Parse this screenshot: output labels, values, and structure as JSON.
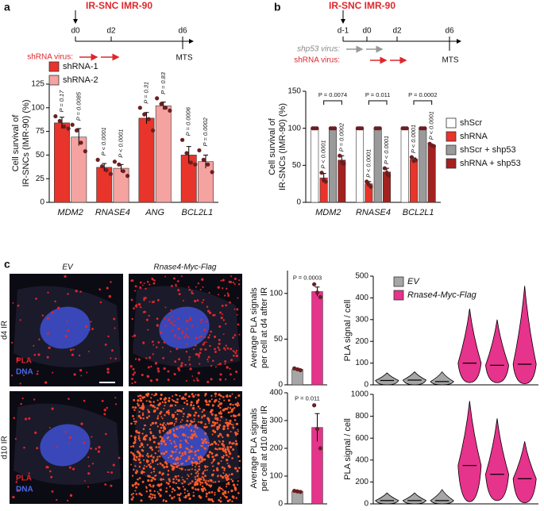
{
  "panels": {
    "a": {
      "label": "a",
      "title": "IR-SNC IMR-90",
      "days": [
        "d0",
        "d2",
        "d6"
      ],
      "virus": "shRNA virus:",
      "readout": "MTS"
    },
    "b": {
      "label": "b",
      "title": "IR-SNC IMR-90",
      "days": [
        "d-1",
        "d0",
        "d2",
        "d6"
      ],
      "virus": [
        "shp53 virus:",
        "shRNA virus:"
      ],
      "readout": "MTS"
    },
    "c": {
      "label": "c",
      "columns": [
        "EV",
        "Rnase4-Myc-Flag"
      ],
      "rows": [
        "d4 IR",
        "d10 IR"
      ],
      "stains": [
        "PLA",
        "DNA"
      ]
    }
  },
  "chart_data": [
    {
      "type": "bar",
      "categories": [
        "MDM2",
        "RNASE4",
        "ANG",
        "BCL2L1"
      ],
      "ylabel": [
        "Cell survival of",
        "IR-SNCs (IMR-90) (%)"
      ],
      "ylim": [
        0,
        125
      ],
      "yticks": [
        0,
        25,
        50,
        75,
        100,
        125
      ],
      "legend": "top-left",
      "series": [
        {
          "name": "shRNA-1",
          "color": "#e8342a",
          "values": [
            84,
            37,
            89,
            50
          ],
          "errors": [
            6,
            4,
            6,
            9
          ],
          "points": [
            [
              91,
              86,
              80,
              78
            ],
            [
              45,
              38,
              34,
              30
            ],
            [
              100,
              93,
              88,
              76
            ],
            [
              66,
              52,
              42,
              40
            ]
          ],
          "p_labels": [
            "P = 0.17",
            "P < 0.0001",
            "P = 0.31",
            "P = 0.0006"
          ]
        },
        {
          "name": "shRNA-2",
          "color": "#f4a3a0",
          "values": [
            69,
            36,
            102,
            43
          ],
          "errors": [
            9,
            4,
            4,
            7
          ],
          "points": [
            [
              82,
              76,
              63,
              54
            ],
            [
              43,
              40,
              33,
              28
            ],
            [
              110,
              104,
              100,
              97
            ],
            [
              55,
              45,
              40,
              32
            ]
          ],
          "p_labels": [
            "P = 0.0085",
            "P < 0.0001",
            "P = 0.83",
            "P = 0.0002"
          ]
        }
      ]
    },
    {
      "type": "bar",
      "categories": [
        "MDM2",
        "RNASE4",
        "BCL2L1"
      ],
      "ylabel": [
        "Cell survival of",
        "IR-SNCs (IMR-90) (%)"
      ],
      "ylim": [
        0,
        150
      ],
      "yticks": [
        0,
        50,
        100,
        150
      ],
      "legend": "right",
      "bracket_labels": [
        "P = 0.0074",
        "P = 0.011",
        "P = 0.0002"
      ],
      "series": [
        {
          "name": "shScr",
          "color": "#ffffff",
          "values": [
            100,
            100,
            100
          ],
          "points": [
            [
              100,
              100,
              100
            ],
            [
              100,
              100,
              100
            ],
            [
              100,
              100,
              100
            ]
          ]
        },
        {
          "name": "shRNA",
          "color": "#e8342a",
          "values": [
            33,
            25,
            58
          ],
          "errors": [
            6,
            3,
            2
          ],
          "points": [
            [
              40,
              30,
              28
            ],
            [
              28,
              24,
              21
            ],
            [
              61,
              56,
              57
            ]
          ],
          "p_labels": [
            "P < 0.0001",
            "P < 0.0001",
            "P < 0.0001"
          ]
        },
        {
          "name": "shScr + shp53",
          "color": "#9a9a9a",
          "values": [
            100,
            100,
            100
          ],
          "points": [
            [
              100,
              100,
              100
            ],
            [
              100,
              100,
              100
            ],
            [
              100,
              100,
              100
            ]
          ]
        },
        {
          "name": "shRNA + shp53",
          "color": "#a3211f",
          "values": [
            57,
            41,
            77
          ],
          "errors": [
            6,
            5,
            1
          ],
          "points": [
            [
              63,
              55,
              52
            ],
            [
              46,
              40,
              36
            ],
            [
              79,
              77,
              76
            ]
          ],
          "p_labels": [
            "P = 0.0002",
            "P < 0.0001",
            "P < 0.0001"
          ]
        }
      ]
    },
    {
      "type": "bar",
      "categories": [
        null,
        null
      ],
      "values": [
        17,
        102
      ],
      "errors": [
        1,
        5
      ],
      "points": [
        [
          18,
          17,
          16
        ],
        [
          110,
          101,
          96
        ]
      ],
      "colors": [
        "#a6a6a6",
        "#e6338c"
      ],
      "ylabel": [
        "Average PLA signals",
        "per cell at d4 after IR"
      ],
      "ylim": [
        0,
        125
      ],
      "yticks": [
        0,
        50,
        100
      ],
      "p_label": "P = 0.0003"
    },
    {
      "type": "bar",
      "categories": [
        null,
        null
      ],
      "values": [
        45,
        275
      ],
      "errors": [
        2,
        50
      ],
      "points": [
        [
          47,
          45,
          43
        ],
        [
          355,
          270,
          200
        ]
      ],
      "colors": [
        "#a6a6a6",
        "#e6338c"
      ],
      "ylabel": [
        "Average PLA signals",
        "per cell at d10 after IR"
      ],
      "ylim": [
        0,
        400
      ],
      "yticks": [
        0,
        100,
        200,
        300,
        400
      ],
      "p_label": "P = 0.011"
    },
    {
      "type": "violin",
      "ylabel": "PLA signal / cell",
      "ylim": [
        0,
        500
      ],
      "yticks": [
        0,
        100,
        200,
        300,
        400,
        500
      ],
      "legend": "top-left",
      "series": [
        {
          "name": "EV",
          "color": "#a6a6a6",
          "min": [
            0,
            0,
            0
          ],
          "median": [
            20,
            22,
            15
          ],
          "max": [
            55,
            60,
            60
          ]
        },
        {
          "name": "Rnase4-Myc-Flag",
          "color": "#e6338c",
          "min": [
            10,
            10,
            5
          ],
          "median": [
            100,
            90,
            95
          ],
          "max": [
            350,
            300,
            455
          ]
        }
      ]
    },
    {
      "type": "violin",
      "ylabel": "PLA signal / cell",
      "ylim": [
        0,
        1000
      ],
      "yticks": [
        0,
        200,
        400,
        600,
        800,
        1000
      ],
      "series": [
        {
          "color": "#a6a6a6",
          "min": [
            0,
            0,
            0
          ],
          "median": [
            30,
            30,
            30
          ],
          "max": [
            100,
            100,
            130
          ]
        },
        {
          "color": "#e6338c",
          "min": [
            20,
            30,
            10
          ],
          "median": [
            350,
            270,
            230
          ],
          "max": [
            940,
            780,
            570
          ]
        }
      ]
    }
  ]
}
